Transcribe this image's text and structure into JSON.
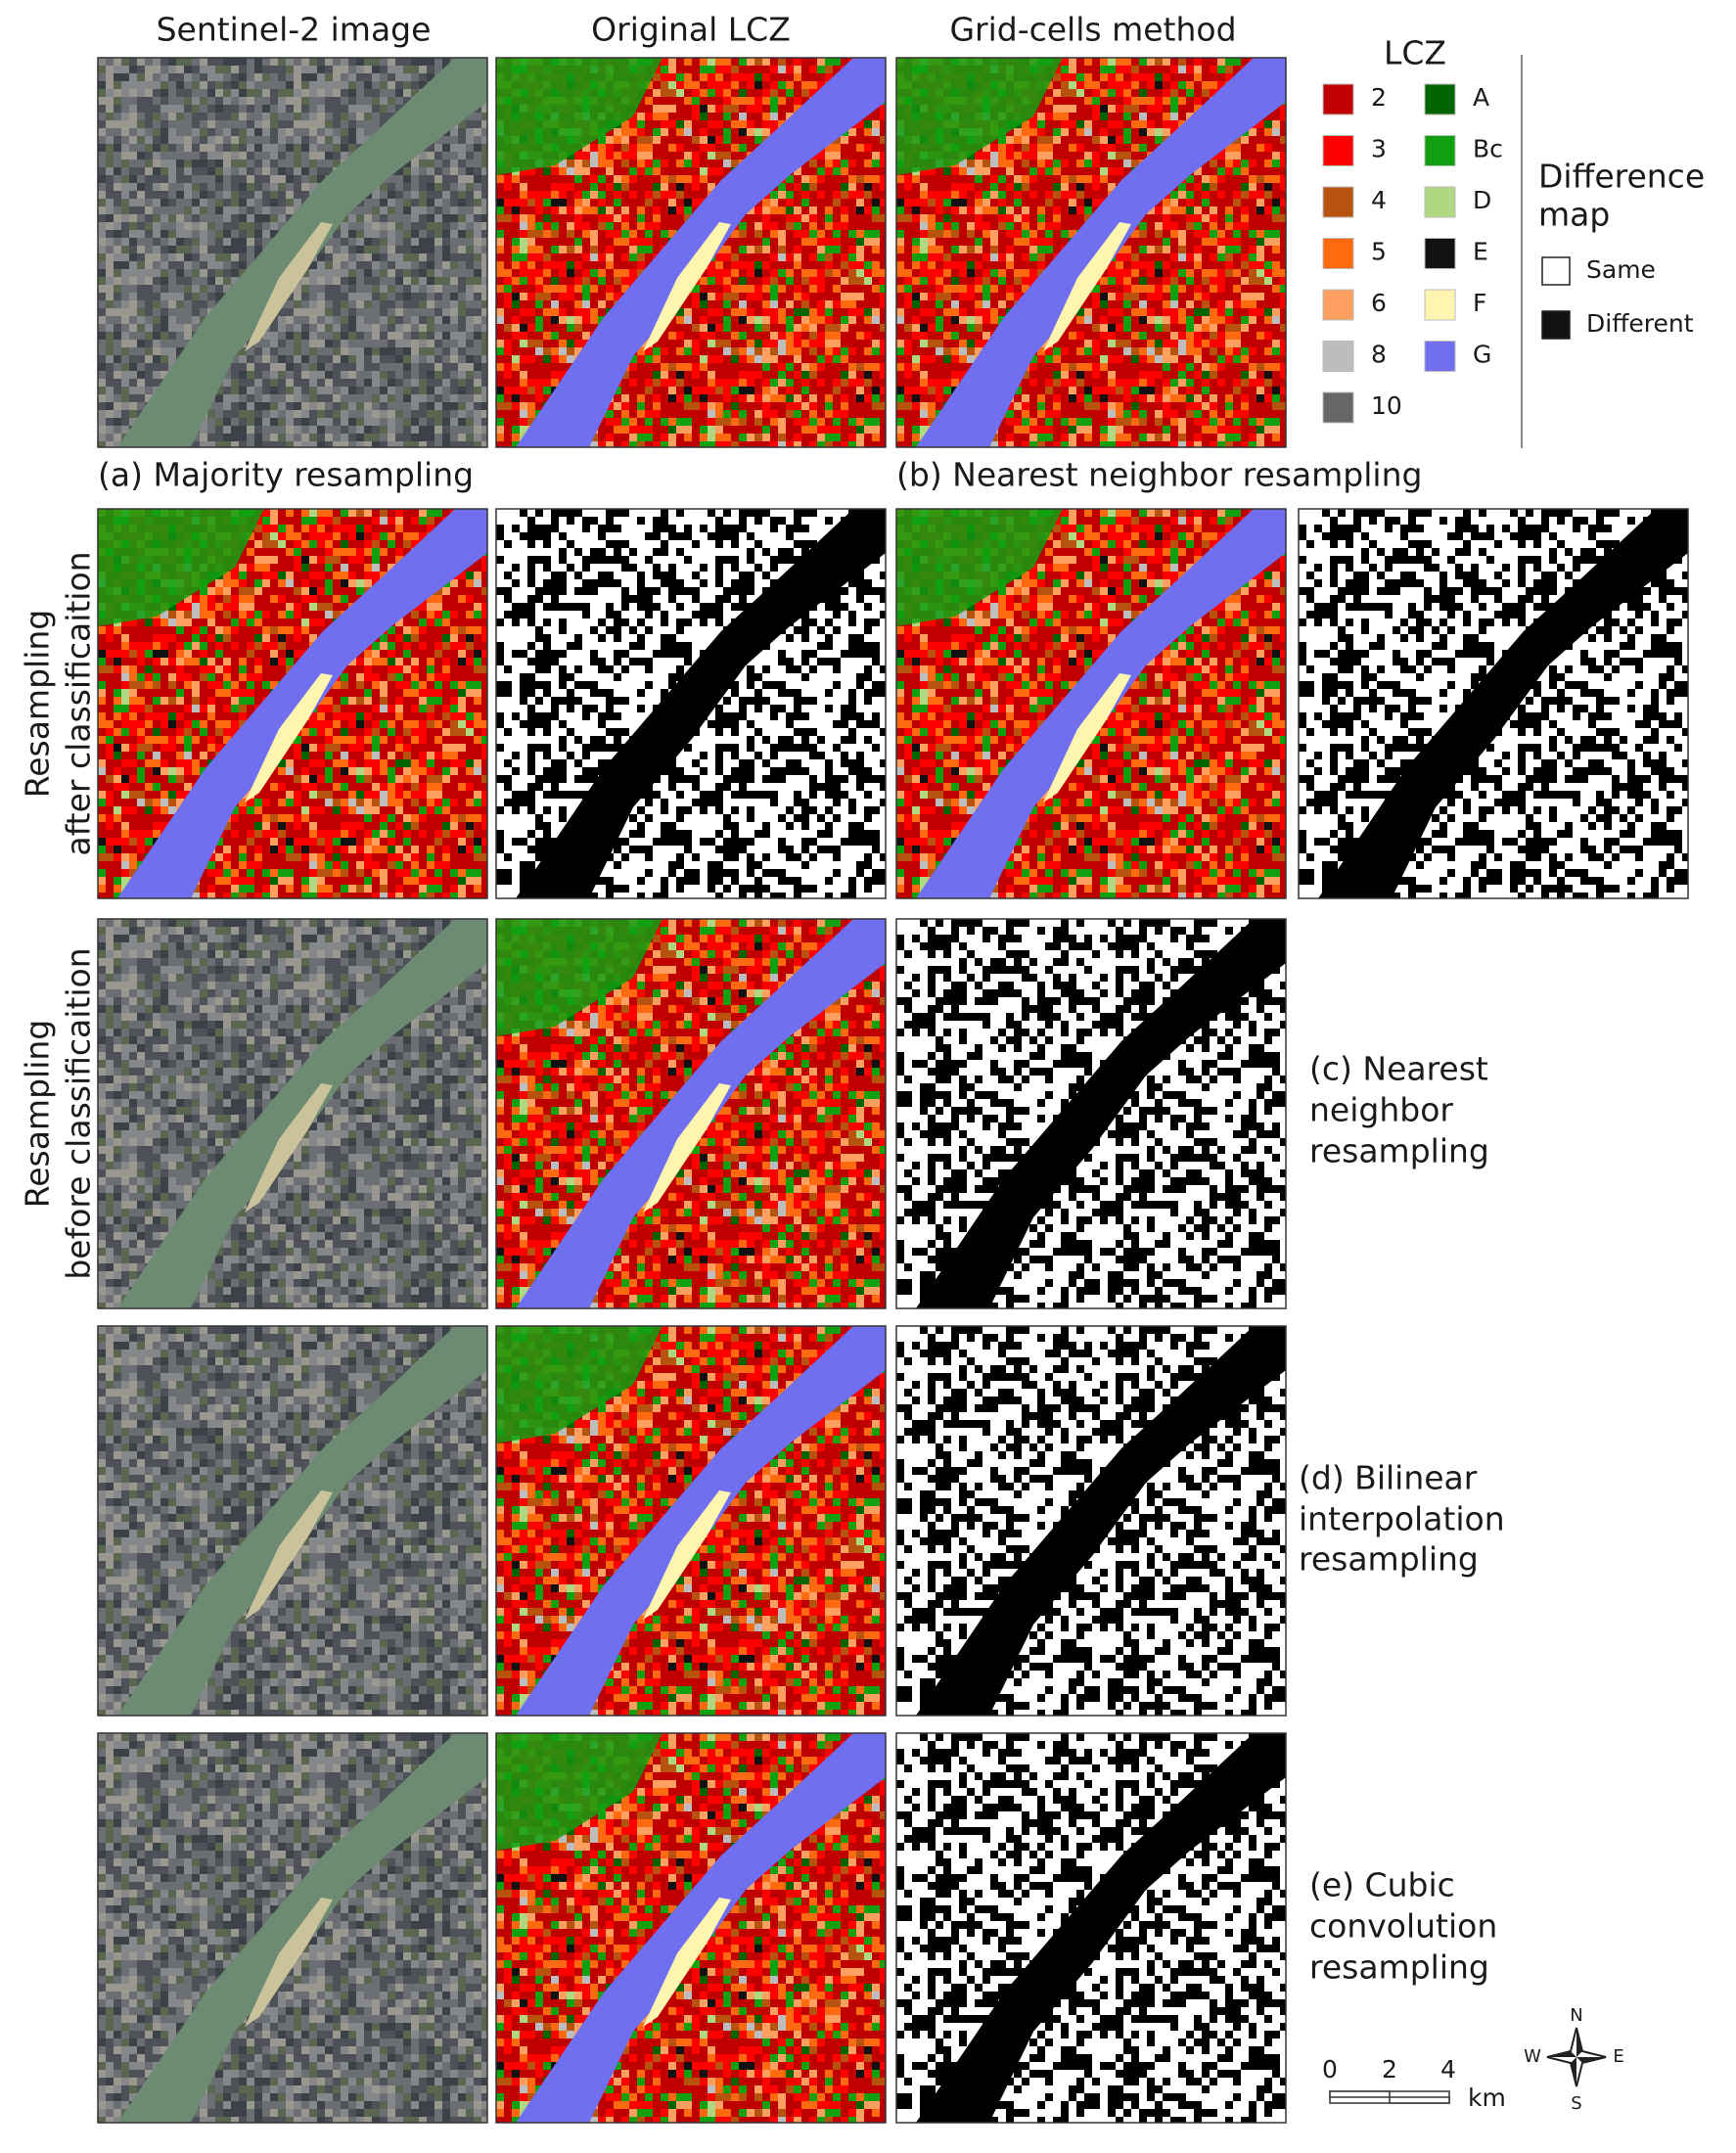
{
  "headers": [
    "Sentinel-2 image",
    "Original LCZ",
    "Grid-cells method"
  ],
  "legend": {
    "title": "LCZ",
    "items": [
      {
        "label": "2",
        "color": "#c00000"
      },
      {
        "label": "3",
        "color": "#ff0000"
      },
      {
        "label": "4",
        "color": "#b8520f"
      },
      {
        "label": "5",
        "color": "#ff6a10"
      },
      {
        "label": "6",
        "color": "#ffa060"
      },
      {
        "label": "8",
        "color": "#bdbdbd"
      },
      {
        "label": "10",
        "color": "#666666"
      },
      {
        "label": "A",
        "color": "#006400"
      },
      {
        "label": "Bc",
        "color": "#10a010"
      },
      {
        "label": "D",
        "color": "#b0d880"
      },
      {
        "label": "E",
        "color": "#111111"
      },
      {
        "label": "F",
        "color": "#fdf5b0"
      },
      {
        "label": "G",
        "color": "#6f6ff0"
      }
    ]
  },
  "difference_legend": {
    "title": [
      "Difference",
      "map"
    ],
    "items": [
      {
        "label": "Same",
        "color": "#ffffff"
      },
      {
        "label": "Different",
        "color": "#111111"
      }
    ]
  },
  "row_labels": [
    [
      "Resampling",
      "after classificaition"
    ],
    [
      "Resampling",
      "before classificaition"
    ]
  ],
  "captions": {
    "a": "(a) Majority resampling",
    "b": "(b) Nearest neighbor resampling",
    "c": [
      "(c) Nearest",
      "neighbor",
      "resampling"
    ],
    "d": [
      "(d) Bilinear",
      "interpolation",
      "resampling"
    ],
    "e": [
      "(e) Cubic",
      "convolution",
      "resampling"
    ]
  },
  "scale_bar": {
    "ticks": [
      0,
      2,
      4
    ],
    "unit": "km"
  },
  "compass": {
    "N": "N",
    "E": "E",
    "S": "S",
    "W": "W"
  }
}
